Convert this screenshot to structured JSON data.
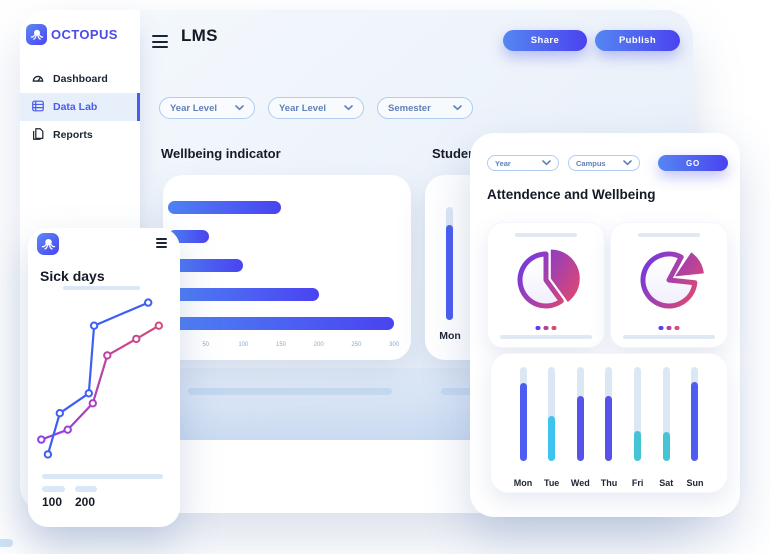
{
  "brand": {
    "name": "OCTOPUS"
  },
  "header": {
    "title": "LMS",
    "share_label": "Share",
    "publish_label": "Publish"
  },
  "sidebar": {
    "items": [
      {
        "label": "Dashboard",
        "icon": "gauge-icon",
        "active": false
      },
      {
        "label": "Data Lab",
        "icon": "data-lab-icon",
        "active": true
      },
      {
        "label": "Reports",
        "icon": "reports-icon",
        "active": false
      }
    ]
  },
  "filters": {
    "main": [
      "Year Level",
      "Year Level",
      "Semester"
    ],
    "attendance": [
      "Year",
      "Campus"
    ],
    "go_label": "GO"
  },
  "sections": {
    "wellbeing_title": "Wellbeing indicator",
    "student_title": "Student",
    "attendance_title": "Attendence and Wellbeing",
    "sick_days_title": "Sick days"
  },
  "colors": {
    "button_gradient": [
      "#5586f2",
      "#4a43ef"
    ],
    "bar_gradient": [
      "#4e82f4",
      "#4a43f0"
    ],
    "track": "#dbe7f5",
    "pie_gradient": [
      "#6236f0",
      "#e1486f"
    ],
    "line_blue": "#3f5ef5",
    "line_pink_gradient": [
      "#8b3cf0",
      "#e0486f"
    ],
    "dot_colors": [
      "#5b3df0",
      "#b23f9a",
      "#e0486f"
    ],
    "placeholder": "#c6daf1",
    "filter_border": "#aecdf2",
    "filter_text": "#5f7fb8"
  },
  "chart_data": [
    {
      "id": "wellbeing-bars",
      "type": "bar",
      "orientation": "horizontal",
      "title": "Wellbeing indicator",
      "values": [
        150,
        55,
        100,
        200,
        300
      ],
      "xlim": [
        0,
        300
      ],
      "x_ticks": [
        50,
        100,
        150,
        200,
        250,
        300
      ],
      "grid": false,
      "legend": false
    },
    {
      "id": "student-day-bar",
      "type": "bar",
      "title": "Student",
      "categories": [
        "Mon"
      ],
      "values_pct_of_track": [
        84
      ],
      "bar_color": "#4b5cf2",
      "note_visible_portion_only": true
    },
    {
      "id": "sick-days-lines",
      "type": "line",
      "title": "Sick days",
      "x_labels_visible": [
        "100",
        "200"
      ],
      "series": [
        {
          "name": "blue-series",
          "color": "#3f5ef5",
          "points_pct": [
            [
              9,
              96
            ],
            [
              18,
              71
            ],
            [
              40,
              59
            ],
            [
              44,
              18
            ],
            [
              85,
              4
            ]
          ]
        },
        {
          "name": "pink-series",
          "color_gradient": [
            "#8b3cf0",
            "#e0486f"
          ],
          "points_pct": [
            [
              4,
              87
            ],
            [
              24,
              81
            ],
            [
              43,
              65
            ],
            [
              54,
              36
            ],
            [
              76,
              26
            ],
            [
              93,
              18
            ]
          ]
        }
      ],
      "markers": "open-circle"
    },
    {
      "id": "attendance-pies",
      "type": "pie",
      "pies": [
        {
          "filled_fraction": 0.4,
          "wedge_deg": [
            0,
            144
          ],
          "notch_deg": [
            0,
            144
          ],
          "explode": [
            4.8,
            -1.5
          ]
        },
        {
          "filled_fraction": 0.14,
          "wedge_deg": [
            34,
            84
          ],
          "notch_deg": [
            28,
            96
          ],
          "explode": [
            6,
            -3.6
          ]
        }
      ],
      "gradient": [
        "#6236f0",
        "#e1486f"
      ]
    },
    {
      "id": "attendance-week-bars",
      "type": "bar",
      "categories": [
        "Mon",
        "Tue",
        "Wed",
        "Thu",
        "Fri",
        "Sat",
        "Sun"
      ],
      "values_pct": [
        83,
        48,
        69,
        69,
        32,
        31,
        84
      ],
      "colors": [
        "#4d5df2",
        "#3ec2ee",
        "#5752e9",
        "#5752e9",
        "#45c4d8",
        "#45c4d8",
        "#4d5df2"
      ],
      "track_color": "#dbe7f5"
    }
  ]
}
